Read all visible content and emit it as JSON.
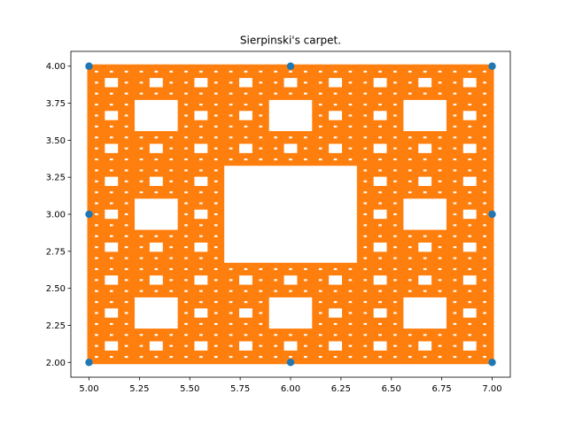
{
  "chart_data": {
    "type": "scatter",
    "title": "Sierpinski's carpet.",
    "xlabel": "",
    "ylabel": "",
    "xlim": [
      4.91,
      7.09
    ],
    "ylim": [
      1.9,
      4.1
    ],
    "x_ticks": [
      "5.00",
      "5.25",
      "5.50",
      "5.75",
      "6.00",
      "6.25",
      "6.50",
      "6.75",
      "7.00"
    ],
    "y_ticks": [
      "2.00",
      "2.25",
      "2.50",
      "2.75",
      "3.00",
      "3.25",
      "3.50",
      "3.75",
      "4.00"
    ],
    "grid": false,
    "series": [
      {
        "color": "#1f77b4",
        "marker": "circle",
        "points": [
          [
            5.0,
            4.0
          ],
          [
            6.0,
            4.0
          ],
          [
            7.0,
            4.0
          ],
          [
            5.0,
            3.0
          ],
          [
            7.0,
            3.0
          ],
          [
            5.0,
            2.0
          ],
          [
            6.0,
            2.0
          ],
          [
            7.0,
            2.0
          ]
        ]
      },
      {
        "color": "#ff7f0e",
        "marker": "x",
        "generator": "sierpinski-carpet chaos game",
        "x_range": [
          5.0,
          7.0
        ],
        "y_range": [
          2.0,
          4.0
        ],
        "depth": 4
      }
    ]
  }
}
